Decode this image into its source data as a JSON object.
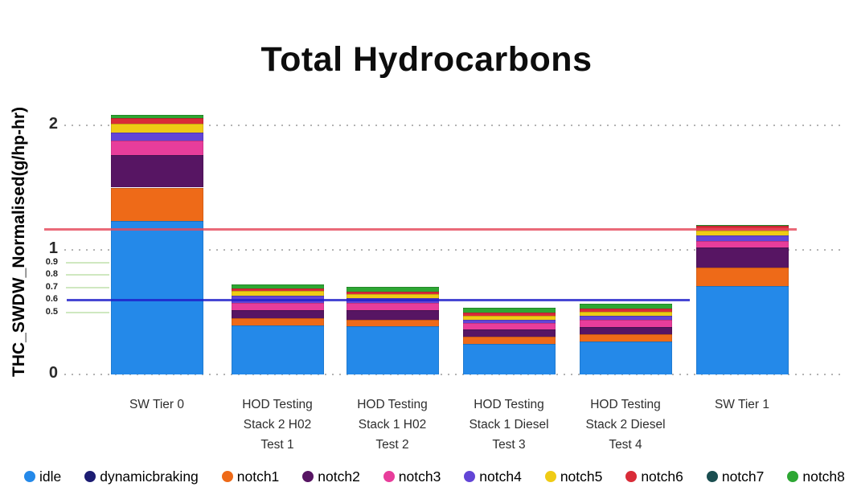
{
  "title": "Total Hydrocarbons",
  "y_axis": {
    "label": "THC_SWDW_Normalised(g/hp-hr)",
    "major_ticks": [
      "0",
      "1",
      "2"
    ],
    "minor_ticks": [
      "0.5",
      "0.6",
      "0.7",
      "0.8",
      "0.9"
    ]
  },
  "chart_data": {
    "type": "bar",
    "stacked": true,
    "title": "Total Hydrocarbons",
    "ylabel": "THC_SWDW_Normalised(g/hp-hr)",
    "ylim": [
      0,
      2.2
    ],
    "grid": "major dotted at 0,1,2; short light-green minor lines at 0.5-0.9",
    "legend_position": "bottom",
    "categories": [
      "SW Tier 0",
      "HOD Testing Stack 2 H02 Test 1",
      "HOD Testing Stack 1 H02 Test 2",
      "HOD Testing Stack 1 Diesel Test 3",
      "HOD Testing Stack 2 Diesel Test 4",
      "SW Tier 1"
    ],
    "x_tick_lines": [
      [
        "SW Tier 0"
      ],
      [
        "HOD Testing",
        "Stack 2 H02",
        "Test 1"
      ],
      [
        "HOD Testing",
        "Stack 1 H02",
        "Test 2"
      ],
      [
        "HOD Testing",
        "Stack 1 Diesel",
        "Test 3"
      ],
      [
        "HOD Testing",
        "Stack 2 Diesel",
        "Test 4"
      ],
      [
        "SW Tier 1"
      ]
    ],
    "series": [
      {
        "name": "idle",
        "color": "#2489E9",
        "values": [
          1.23,
          0.392,
          0.39,
          0.247,
          0.265,
          0.712
        ]
      },
      {
        "name": "dynamicbraking",
        "color": "#1C1C72",
        "values": [
          0,
          0,
          0,
          0,
          0,
          0
        ]
      },
      {
        "name": "notch1",
        "color": "#EE6A18",
        "values": [
          0.27,
          0.06,
          0.05,
          0.056,
          0.06,
          0.148
        ]
      },
      {
        "name": "notch2",
        "color": "#571563",
        "values": [
          0.26,
          0.066,
          0.075,
          0.058,
          0.058,
          0.157
        ]
      },
      {
        "name": "notch3",
        "color": "#E83D9B",
        "values": [
          0.12,
          0.058,
          0.06,
          0.05,
          0.054,
          0.054
        ]
      },
      {
        "name": "notch4",
        "color": "#6245D6",
        "values": [
          0.065,
          0.055,
          0.035,
          0.028,
          0.032,
          0.043
        ]
      },
      {
        "name": "notch5",
        "color": "#EFCB15",
        "values": [
          0.07,
          0.04,
          0.032,
          0.034,
          0.032,
          0.043
        ]
      },
      {
        "name": "notch6",
        "color": "#D92C38",
        "values": [
          0.045,
          0.021,
          0.021,
          0.024,
          0.026,
          0.035
        ]
      },
      {
        "name": "notch7",
        "color": "#1A4E50",
        "values": [
          0,
          0,
          0,
          0,
          0,
          0
        ]
      },
      {
        "name": "notch8",
        "color": "#2DA733",
        "values": [
          0.025,
          0.03,
          0.042,
          0.041,
          0.043,
          0.008
        ]
      }
    ],
    "totals": [
      2.085,
      0.722,
      0.705,
      0.538,
      0.57,
      1.2
    ],
    "reference_lines": [
      {
        "name": "red-line",
        "value": 1.17,
        "color": "#E5495B"
      },
      {
        "name": "blue-line",
        "value": 0.6,
        "color": "#1F1FC9"
      }
    ],
    "gridlines": {
      "major": [
        0,
        1,
        2
      ],
      "minor_green": [
        0.5,
        0.7,
        0.8,
        0.9
      ]
    }
  }
}
